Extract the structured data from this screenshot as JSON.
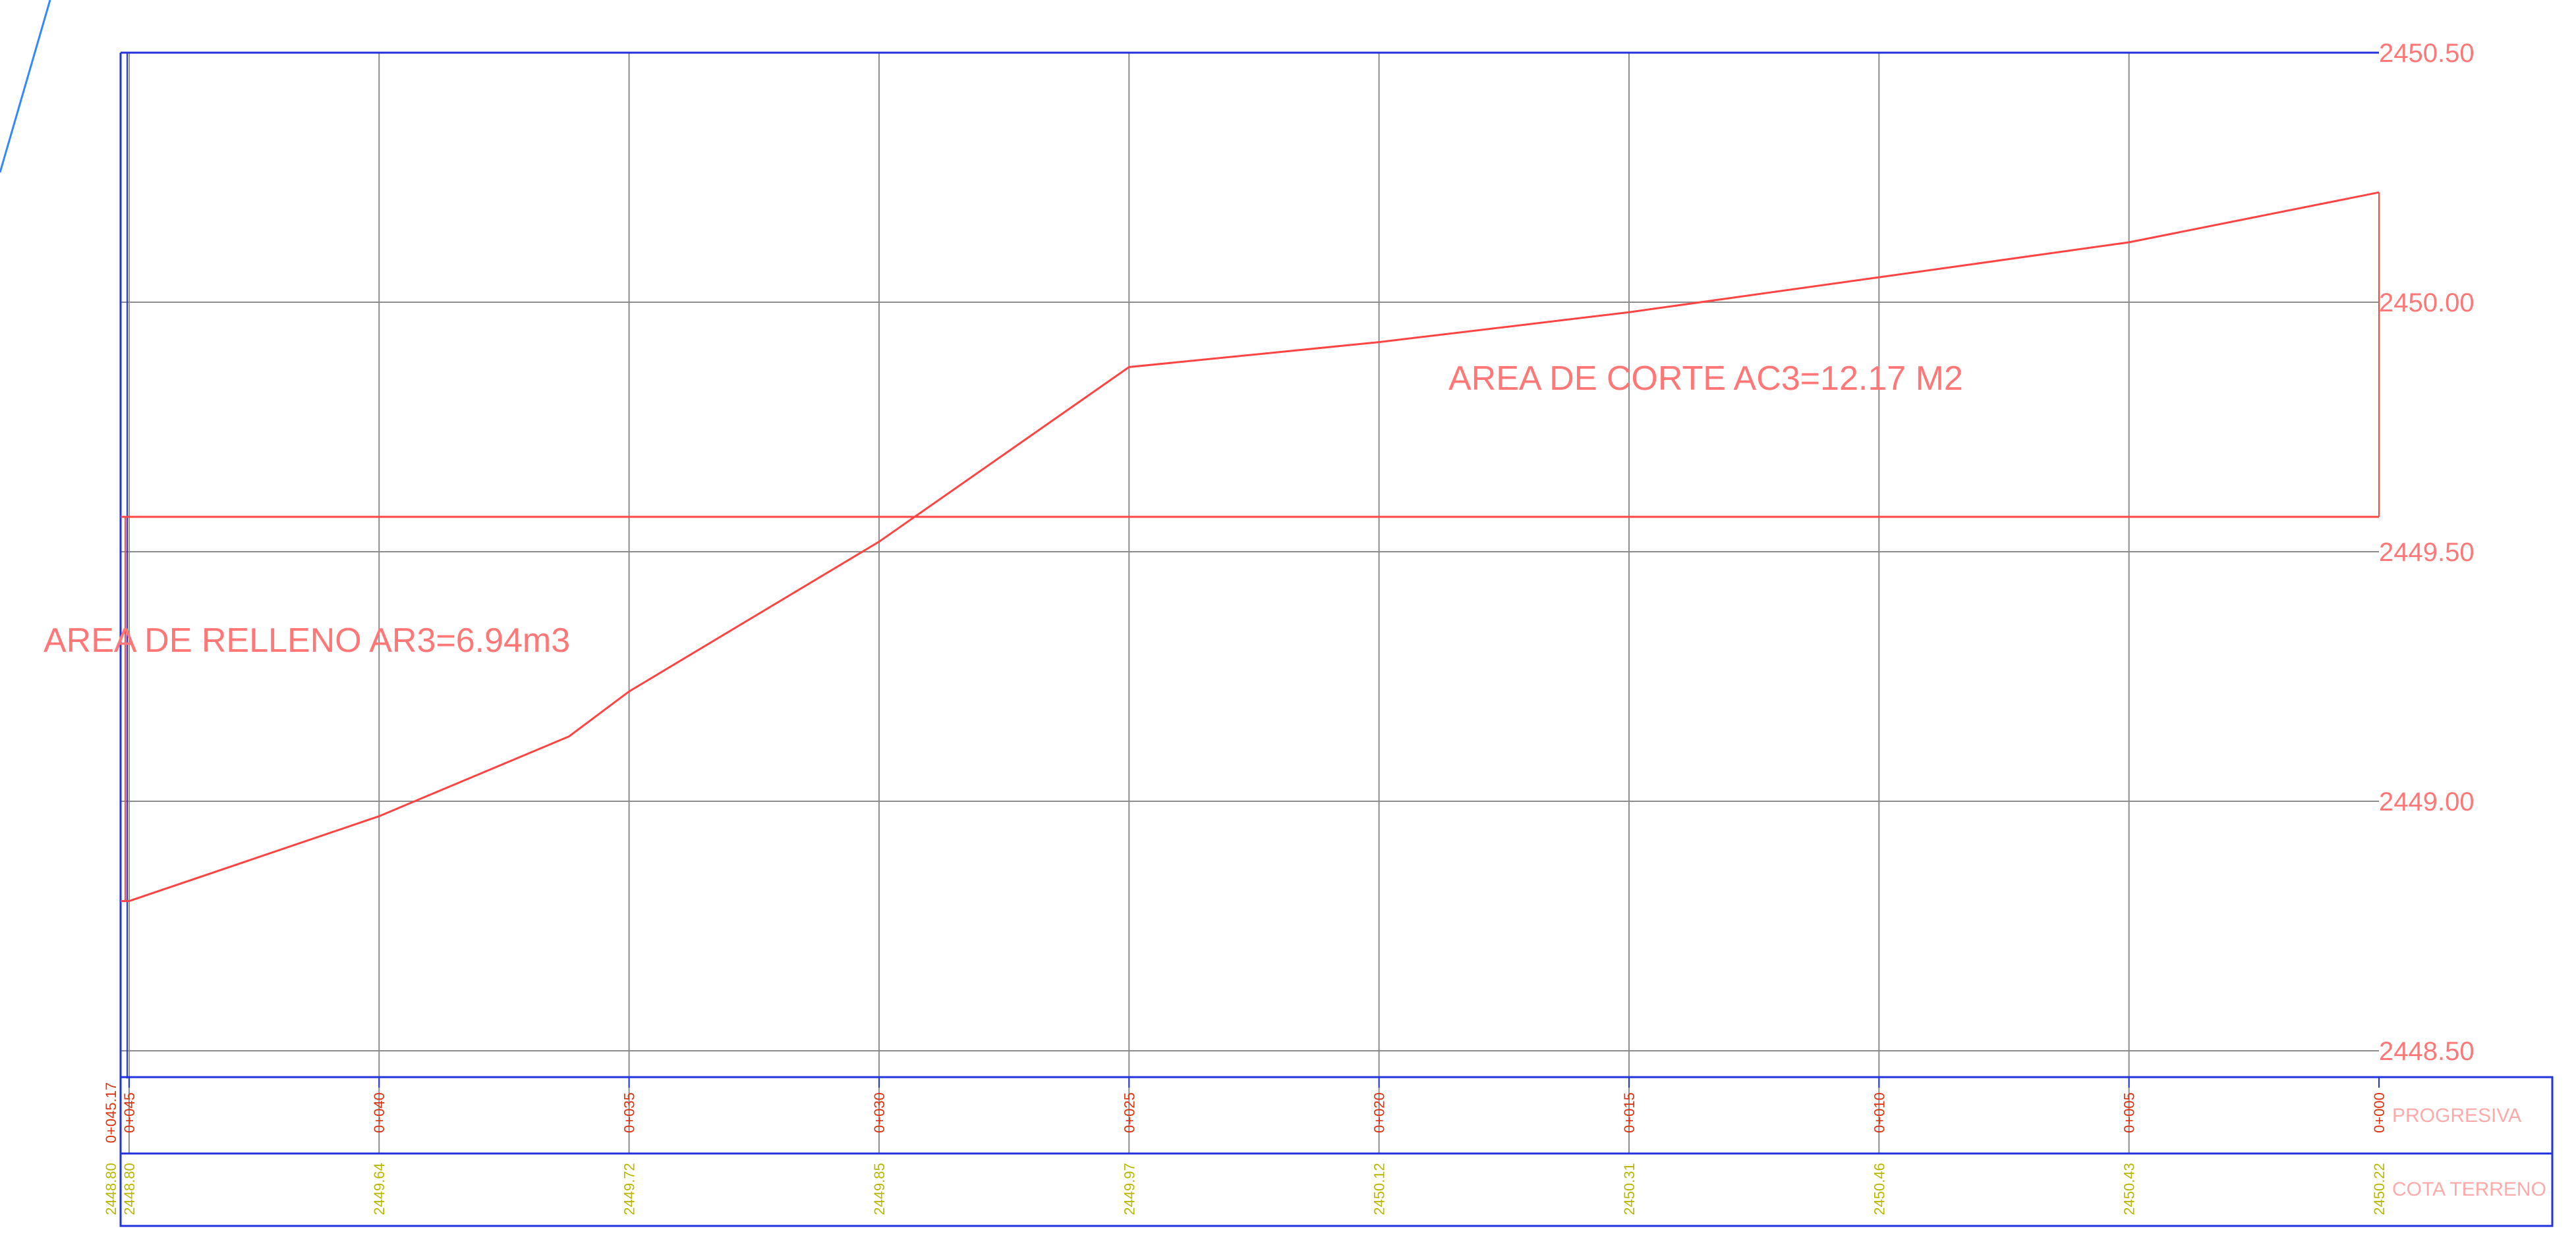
{
  "chart_data": {
    "type": "line",
    "series": [
      {
        "x": [
          45.17,
          45,
          40,
          36.2,
          35,
          30,
          25,
          20,
          15,
          10,
          5,
          0
        ],
        "values": [
          2448.8,
          2448.8,
          2448.97,
          2449.13,
          2449.22,
          2449.52,
          2449.87,
          2449.92,
          2449.98,
          2450.05,
          2450.12,
          2450.22
        ],
        "color": "#ff4444"
      }
    ],
    "reference_line": {
      "value": 2449.57,
      "color": "#ff4444"
    },
    "ylim": [
      2448.5,
      2450.5
    ],
    "y_ticks": [
      "2450.50",
      "2450.00",
      "2449.50",
      "2449.00",
      "2448.50"
    ],
    "x_reversed": true,
    "grid": true
  },
  "annotations": {
    "corte": "AREA DE CORTE AC3=12.17 M2",
    "relleno": "AREA DE RELLENO AR3=6.94m3"
  },
  "band": {
    "progresiva_label": "PROGRESIVA",
    "cota_label": "COTA TERRENO",
    "stations": [
      {
        "x": 45.17,
        "progresiva": "0+045.17",
        "cota": "2448.80"
      },
      {
        "x": 45,
        "progresiva": "0+045",
        "cota": "2448.80"
      },
      {
        "x": 40,
        "progresiva": "0+040",
        "cota": "2449.64"
      },
      {
        "x": 35,
        "progresiva": "0+035",
        "cota": "2449.72"
      },
      {
        "x": 30,
        "progresiva": "0+030",
        "cota": "2449.85"
      },
      {
        "x": 25,
        "progresiva": "0+025",
        "cota": "2449.97"
      },
      {
        "x": 20,
        "progresiva": "0+020",
        "cota": "2450.12"
      },
      {
        "x": 15,
        "progresiva": "0+015",
        "cota": "2450.31"
      },
      {
        "x": 10,
        "progresiva": "0+010",
        "cota": "2450.46"
      },
      {
        "x": 5,
        "progresiva": "0+005",
        "cota": "2450.43"
      },
      {
        "x": 0,
        "progresiva": "0+000",
        "cota": "2450.22"
      }
    ]
  },
  "colors": {
    "frame": "#2233dd",
    "grid": "#8c8c8c",
    "profile": "#ff4444",
    "label": "#ff7777",
    "progresiva_text": "#dd3311",
    "cota_text": "#b8b800",
    "band_label": "#ffaaaa",
    "stray_line": "#3388ff"
  }
}
